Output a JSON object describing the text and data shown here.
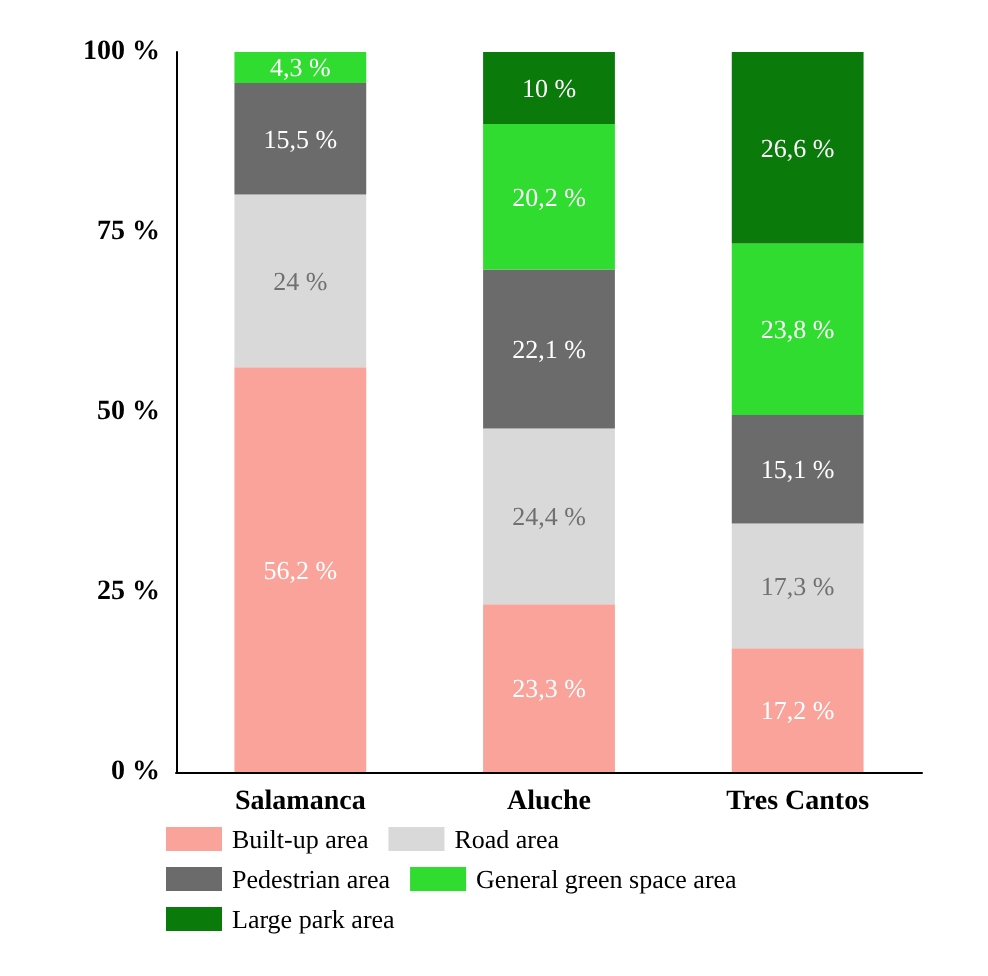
{
  "chart_data": {
    "type": "bar",
    "stacked": true,
    "categories": [
      "Salamanca",
      "Aluche",
      "Tres Cantos"
    ],
    "series": [
      {
        "name": "Built-up area",
        "color": "#f9a39b",
        "values": [
          56.2,
          23.3,
          17.2
        ],
        "value_labels": [
          "56,2 %",
          "23,3 %",
          "17,2 %"
        ]
      },
      {
        "name": "Road area",
        "color": "#d9d9d9",
        "values": [
          24,
          24.4,
          17.3
        ],
        "value_labels": [
          "24 %",
          "24,4 %",
          "17,3 %"
        ]
      },
      {
        "name": "Pedestrian area",
        "color": "#6b6b6b",
        "values": [
          15.5,
          22.1,
          15.1
        ],
        "value_labels": [
          "15,5 %",
          "22,1 %",
          "15,1 %"
        ]
      },
      {
        "name": "General green space area",
        "color": "#2fdc2f",
        "values": [
          4.3,
          20.2,
          23.8
        ],
        "value_labels": [
          "4,3 %",
          "20,2 %",
          "23,8 %"
        ]
      },
      {
        "name": "Large park area",
        "color": "#0a7a0a",
        "values": [
          null,
          10,
          26.6
        ],
        "value_labels": [
          null,
          "10 %",
          "26,6 %"
        ]
      }
    ],
    "ylim": [
      0,
      100
    ],
    "yticks": [
      {
        "value": 0,
        "label": "0 %"
      },
      {
        "value": 25,
        "label": "25 %"
      },
      {
        "value": 50,
        "label": "50 %"
      },
      {
        "value": 75,
        "label": "75 %"
      },
      {
        "value": 100,
        "label": "100 %"
      }
    ],
    "grid": false,
    "legend": "bottom"
  }
}
